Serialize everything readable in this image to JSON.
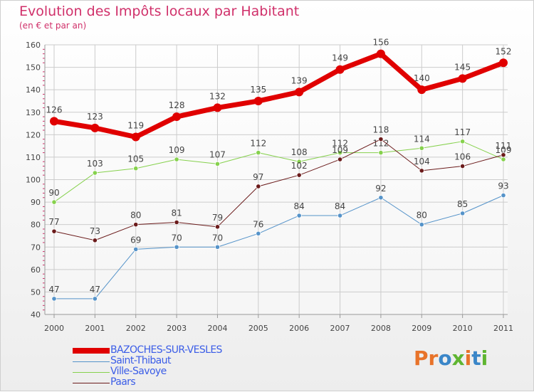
{
  "header": {
    "title": "Evolution des Impôts locaux par Habitant",
    "subtitle": "(en € et par an)"
  },
  "colors": {
    "title": "#d0306a",
    "legend_text": "#3b5de7",
    "grid": "#cccccc",
    "axis": "#999999"
  },
  "logo": {
    "text": "Proxiti",
    "letters": [
      "P",
      "r",
      "o",
      "x",
      "i",
      "t",
      "i"
    ],
    "letter_colors": [
      "#e8732a",
      "#e8732a",
      "#3a86c8",
      "#5fb531",
      "#e8732a",
      "#3a86c8",
      "#5fb531"
    ]
  },
  "chart_data": {
    "type": "line",
    "title": "Evolution des Impôts locaux par Habitant",
    "subtitle": "(en € et par an)",
    "xlabel": "",
    "ylabel": "",
    "x": [
      "2000",
      "2001",
      "2002",
      "2003",
      "2004",
      "2005",
      "2006",
      "2007",
      "2008",
      "2009",
      "2010",
      "2011"
    ],
    "ylim": [
      40,
      160
    ],
    "yticks": [
      40,
      50,
      60,
      70,
      80,
      90,
      100,
      110,
      120,
      130,
      140,
      150,
      160
    ],
    "grid": true,
    "legend_position": "bottom-left",
    "series": [
      {
        "name": "BAZOCHES-SUR-VESLES",
        "color": "#e00000",
        "line_width": 7,
        "marker_radius": 6,
        "values": [
          126,
          123,
          119,
          128,
          132,
          135,
          139,
          149,
          156,
          140,
          145,
          152
        ]
      },
      {
        "name": "Saint-Thibaut",
        "color": "#5593c9",
        "line_width": 1,
        "marker_radius": 3.2,
        "values": [
          47,
          47,
          69,
          70,
          70,
          76,
          84,
          84,
          92,
          80,
          85,
          93
        ]
      },
      {
        "name": "Ville-Savoye",
        "color": "#86d14d",
        "line_width": 1,
        "marker_radius": 3.2,
        "values": [
          90,
          103,
          105,
          109,
          107,
          112,
          108,
          112,
          112,
          114,
          117,
          109
        ]
      },
      {
        "name": "Paars",
        "color": "#6b1b1b",
        "line_width": 1,
        "marker_radius": 3.2,
        "values": [
          77,
          73,
          80,
          81,
          79,
          97,
          102,
          109,
          118,
          104,
          106,
          111
        ]
      }
    ]
  }
}
